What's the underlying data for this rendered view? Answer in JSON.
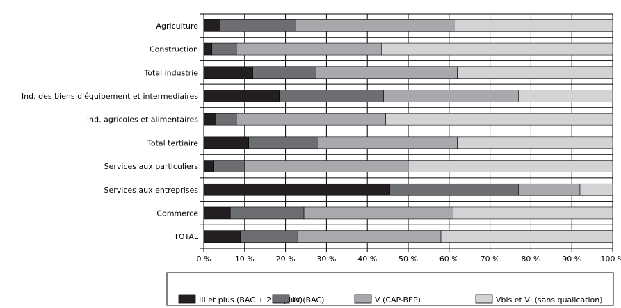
{
  "chart_data": {
    "type": "bar",
    "orientation": "horizontal",
    "stacked": true,
    "percent": true,
    "categories": [
      "Agriculture",
      "Construction",
      "Total industrie",
      "Ind. des biens d'équipement et intermediaires",
      "Ind. agricoles et alimentaires",
      "Total tertiaire",
      "Services aux particuliers",
      "Services aux entreprises",
      "Commerce",
      "TOTAL"
    ],
    "series": [
      {
        "name": "III et plus (BAC + 2 et plus)",
        "color": "#231f20",
        "values": [
          4,
          2,
          12,
          18.5,
          3,
          11,
          2.5,
          45.5,
          6.5,
          9
        ]
      },
      {
        "name": "IV (BAC)",
        "color": "#6d6e71",
        "values": [
          18.5,
          6,
          15.5,
          25.5,
          5,
          17,
          7.5,
          31.5,
          18,
          14
        ]
      },
      {
        "name": "V (CAP-BEP)",
        "color": "#a7a9ac",
        "values": [
          39,
          35.5,
          34.5,
          33,
          36.5,
          34,
          40,
          15,
          36.5,
          35
        ]
      },
      {
        "name": "Vbis et VI (sans qualication)",
        "color": "#d1d3d4",
        "values": [
          38.5,
          56.5,
          38,
          23,
          55.5,
          38,
          50,
          8,
          39,
          42
        ]
      }
    ],
    "xlim": [
      0,
      100
    ],
    "xticks": [
      "0 %",
      "10 %",
      "20 %",
      "30 %",
      "40 %",
      "50 %",
      "60 %",
      "70 %",
      "80 %",
      "90 %",
      "100 %"
    ],
    "grid": true,
    "legend_position": "bottom-right"
  }
}
